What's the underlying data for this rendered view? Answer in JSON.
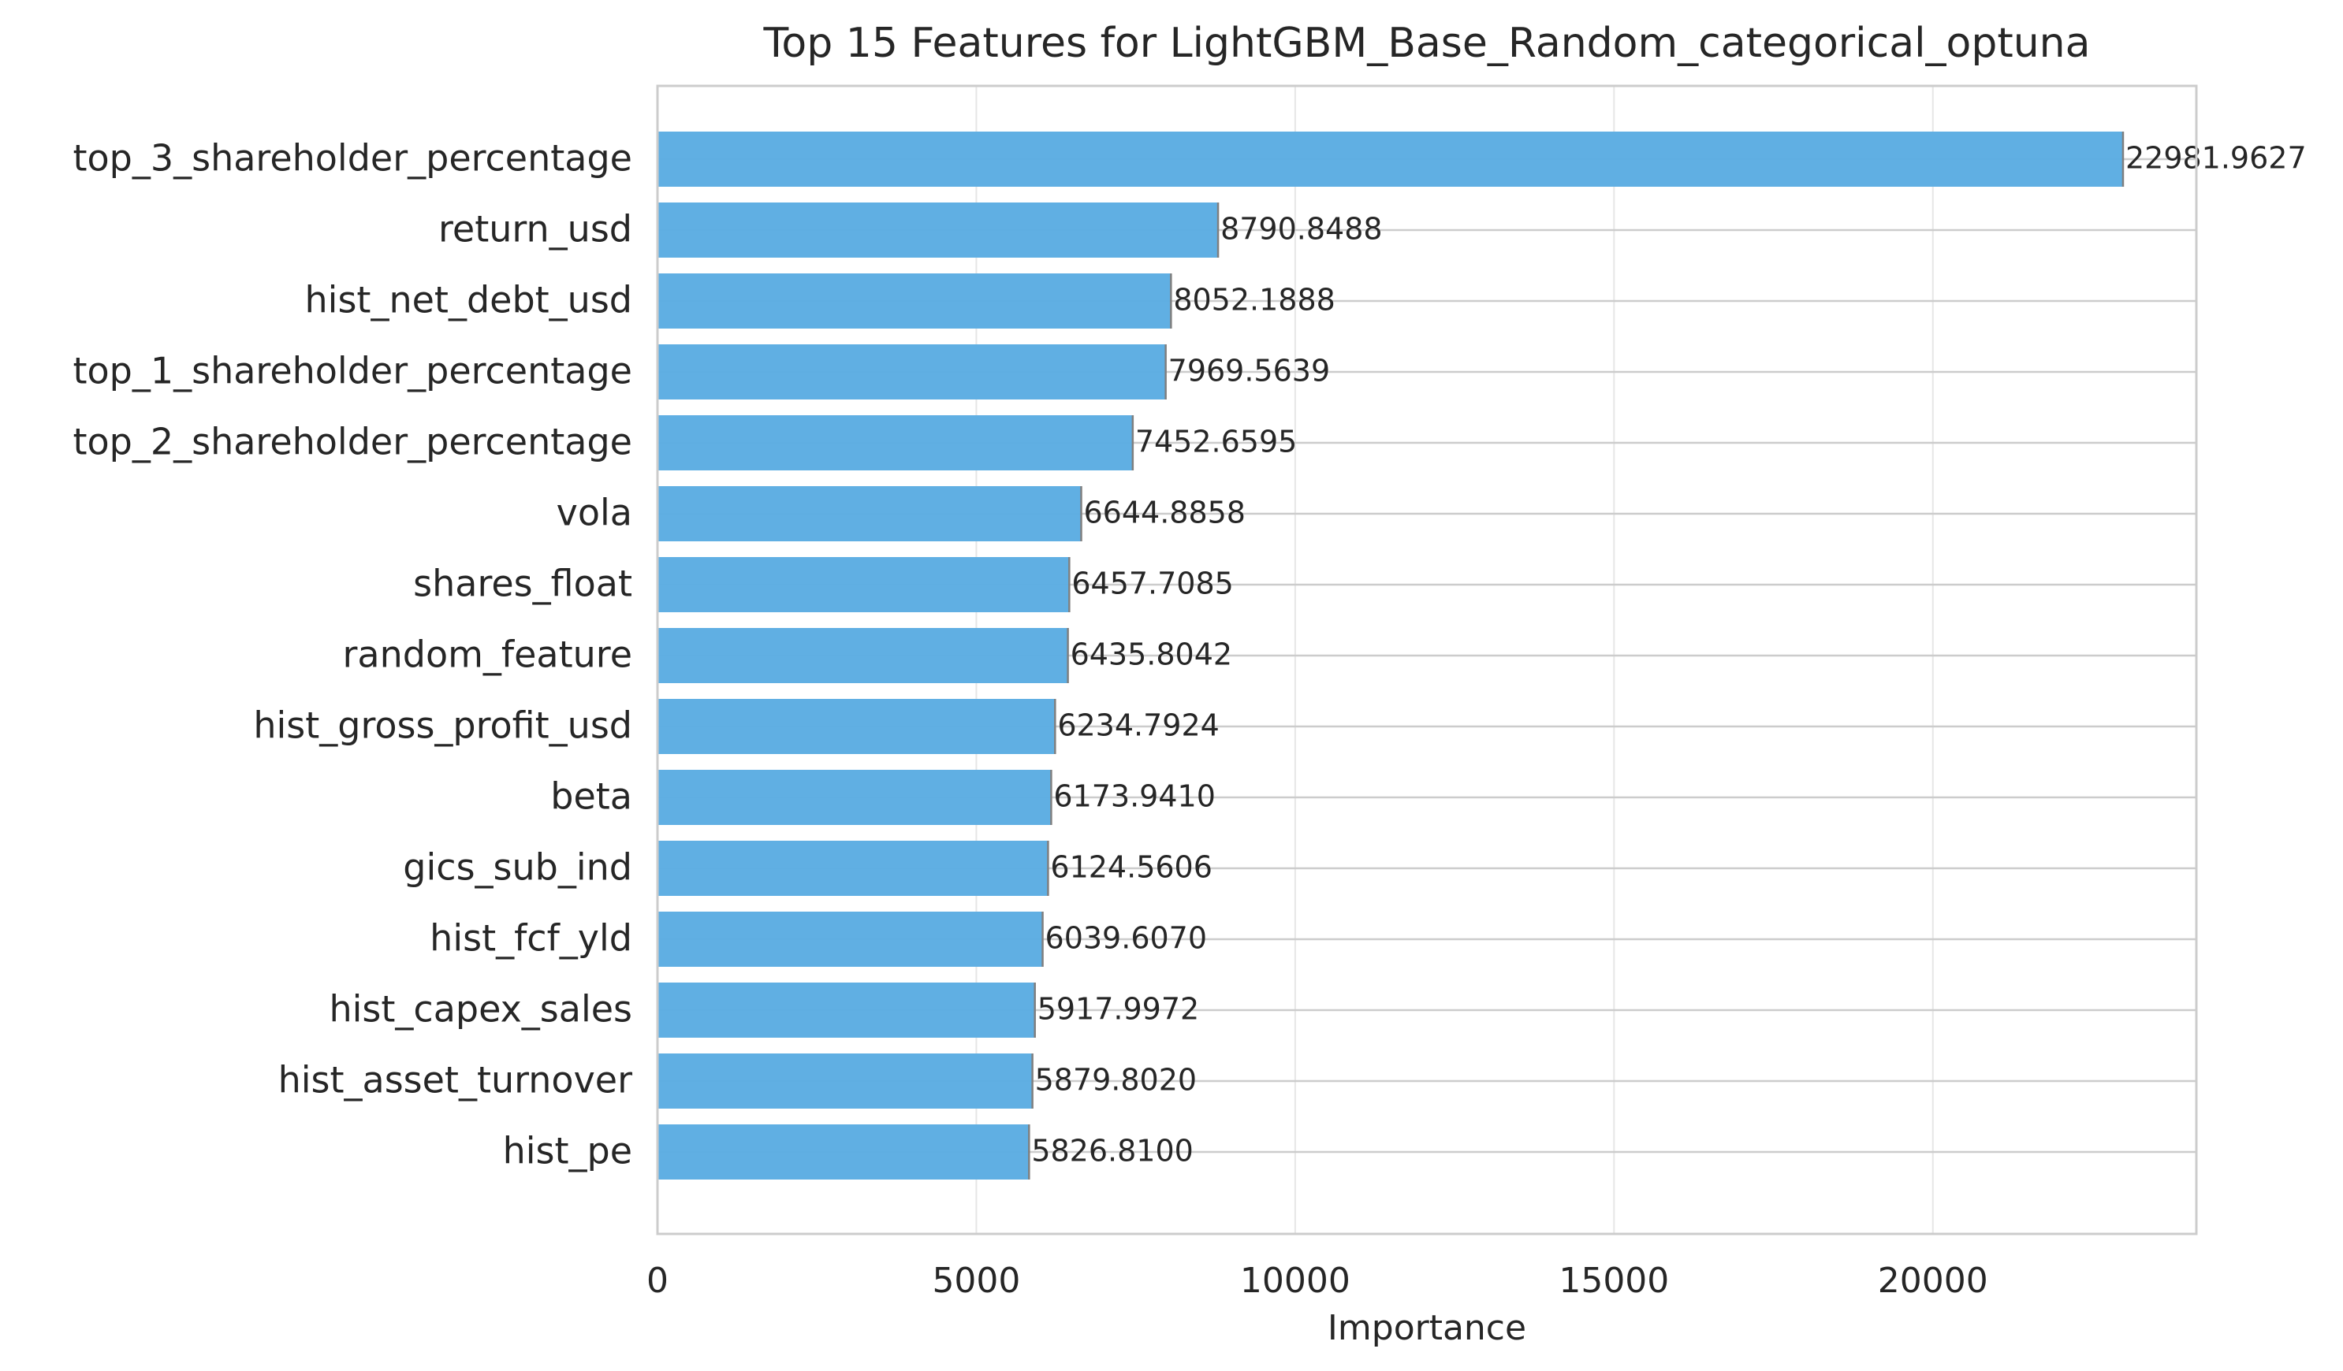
{
  "chart_data": {
    "type": "bar",
    "orientation": "horizontal",
    "title": "Top 15 Features for LightGBM_Base_Random_categorical_optuna",
    "xlabel": "Importance",
    "ylabel": "",
    "xlim": [
      0,
      24132
    ],
    "xticks": [
      0,
      5000,
      10000,
      15000,
      20000
    ],
    "grid": true,
    "bar_color": "#5DADE2",
    "categories": [
      "top_3_shareholder_percentage",
      "return_usd",
      "hist_net_debt_usd",
      "top_1_shareholder_percentage",
      "top_2_shareholder_percentage",
      "vola",
      "shares_float",
      "random_feature",
      "hist_gross_profit_usd",
      "beta",
      "gics_sub_ind",
      "hist_fcf_yld",
      "hist_capex_sales",
      "hist_asset_turnover",
      "hist_pe"
    ],
    "values": [
      22981.9627,
      8790.8488,
      8052.1888,
      7969.5639,
      7452.6595,
      6644.8858,
      6457.7085,
      6435.8042,
      6234.7924,
      6173.941,
      6124.5606,
      6039.607,
      5917.9972,
      5879.802,
      5826.81
    ],
    "value_labels": [
      "22981.9627",
      "8790.8488",
      "8052.1888",
      "7969.5639",
      "7452.6595",
      "6644.8858",
      "6457.7085",
      "6435.8042",
      "6234.7924",
      "6173.9410",
      "6124.5606",
      "6039.6070",
      "5917.9972",
      "5879.8020",
      "5826.8100"
    ]
  }
}
